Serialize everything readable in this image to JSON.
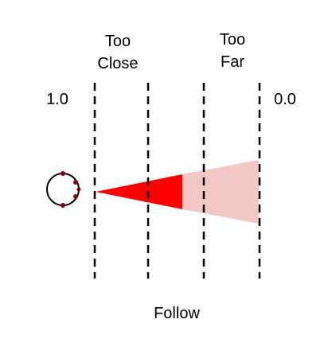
{
  "labels": {
    "too_close": "Too Close",
    "too_far": "Too Far",
    "near_value": "1.0",
    "far_value": "0.0",
    "mode": "Follow"
  },
  "colors": {
    "near_cone": "#ff0000",
    "far_cone": "#f4c7c7",
    "robot_outline": "#000000",
    "robot_wheels": "#8b0000",
    "boundary_lines": "#000000"
  },
  "icons": {
    "robot": "robot-topdown-icon"
  }
}
